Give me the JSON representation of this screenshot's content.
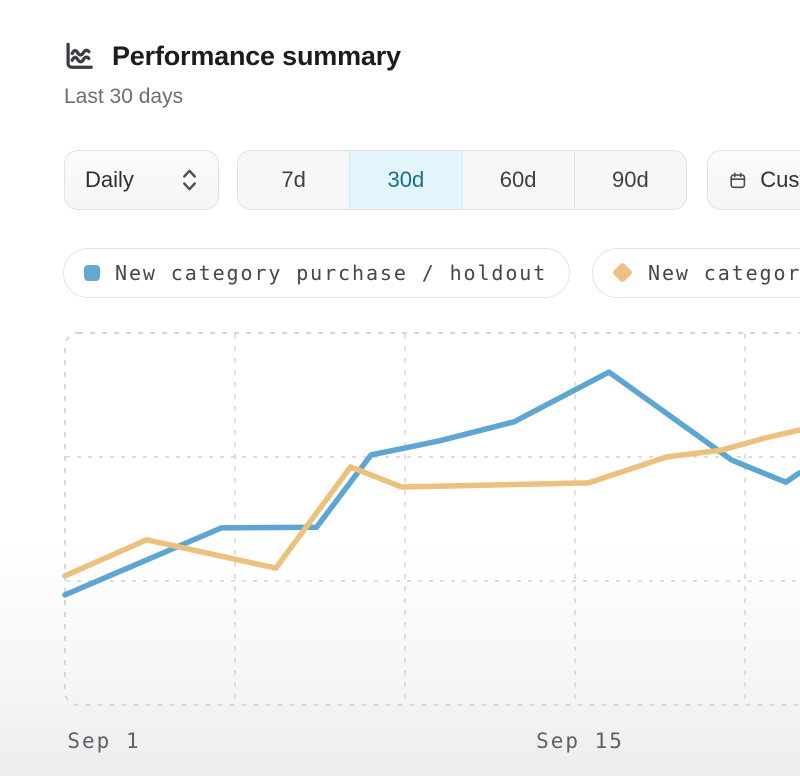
{
  "header": {
    "title": "Performance summary",
    "subtitle": "Last 30 days"
  },
  "controls": {
    "granularity": {
      "value": "Daily"
    },
    "range_tabs": [
      {
        "label": "7d",
        "selected": false
      },
      {
        "label": "30d",
        "selected": true
      },
      {
        "label": "60d",
        "selected": false
      },
      {
        "label": "90d",
        "selected": false
      }
    ],
    "custom_button": {
      "label": "Custom"
    }
  },
  "legend": {
    "items": [
      {
        "label": "New category purchase / holdout",
        "marker": "square",
        "color": "#64a8d3"
      },
      {
        "label": "New category purchase",
        "marker": "diamond",
        "color": "#ecc284"
      }
    ]
  },
  "chart_data": {
    "type": "line",
    "title": "Performance summary",
    "subtitle": "Last 30 days",
    "grid_style": "dashed",
    "legend_position": "top",
    "x_axis": {
      "unit": "date",
      "note": "x expressed as days after Aug 31; chart left edge = day 0, right edge clipped at ~day 21.6",
      "ticks": [
        {
          "label": "Sep 1",
          "day": 1
        },
        {
          "label": "Sep 15",
          "day": 15
        }
      ],
      "gridline_days": [
        5,
        10,
        15,
        20
      ],
      "visible_range_days": [
        0,
        21.6
      ]
    },
    "y_axis": {
      "labels_visible": false,
      "unit": "relative value 0-100 (axis unlabeled in source)",
      "range": [
        0,
        100
      ],
      "gridline_values": [
        33.3,
        66.7
      ]
    },
    "series": [
      {
        "name": "New category purchase / holdout",
        "color": "#5ea6d2",
        "marker": "square",
        "points": [
          [
            0,
            29.6
          ],
          [
            4.6,
            47.6
          ],
          [
            7.4,
            47.8
          ],
          [
            9,
            67.2
          ],
          [
            11,
            71
          ],
          [
            13.2,
            76.1
          ],
          [
            16,
            89.5
          ],
          [
            19.6,
            65.9
          ],
          [
            21.2,
            59.9
          ],
          [
            21.6,
            62.4
          ]
        ]
      },
      {
        "name": "New category purchase",
        "color": "#ecc17e",
        "marker": "diamond",
        "points": [
          [
            0,
            34.7
          ],
          [
            2.4,
            44.4
          ],
          [
            6.2,
            36.8
          ],
          [
            8.4,
            64
          ],
          [
            9.9,
            58.6
          ],
          [
            15.4,
            59.7
          ],
          [
            17.7,
            66.7
          ],
          [
            19.3,
            68.5
          ],
          [
            20.6,
            71.8
          ],
          [
            21.6,
            73.9
          ]
        ]
      }
    ]
  },
  "colors": {
    "selected_tab_bg": "#e1f5fa",
    "selected_tab_text": "#17708c",
    "gridline": "#d5d6d8",
    "tick_text": "#5e6267",
    "title_text": "#1b1c1f",
    "subtitle_text": "#6a6e74"
  }
}
